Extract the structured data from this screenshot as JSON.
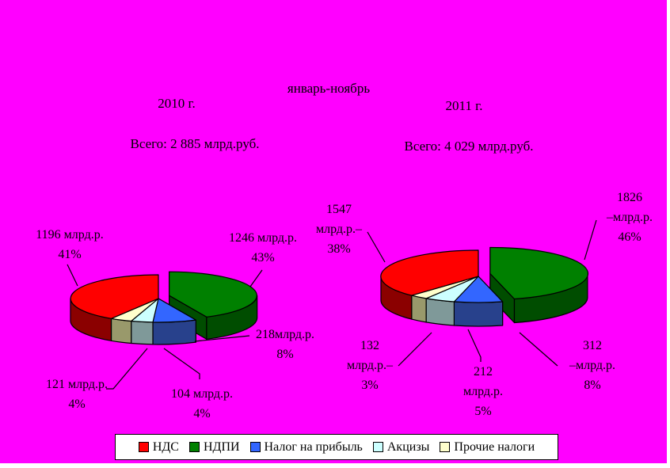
{
  "window": {
    "background": "#FF00FF",
    "border_color": "#FFFFFF"
  },
  "title": "январь-ноябрь",
  "charts": [
    {
      "year": "2010 г.",
      "total": "Всего: 2 885 млрд.руб.",
      "callouts": {
        "nds": {
          "lines": [
            "1196 млрд.р.",
            "41%"
          ]
        },
        "ndpi": {
          "lines": [
            "1246 млрд.р.",
            "43%"
          ]
        },
        "profit": {
          "lines": [
            "218млрд.р.",
            "8%"
          ]
        },
        "excise": {
          "lines": [
            "104 млрд.р.",
            "4%"
          ]
        },
        "other": {
          "lines": [
            "121 млрд.р.",
            "4%"
          ]
        }
      }
    },
    {
      "year": "2011 г.",
      "total": "Всего: 4 029 млрд.руб.",
      "callouts": {
        "nds": {
          "lines": [
            "1547",
            "млрд.р.–",
            "38%"
          ]
        },
        "ndpi": {
          "lines": [
            "1826",
            "–млрд.р.",
            "46%"
          ]
        },
        "profit": {
          "lines": [
            "312",
            "–млрд.р.",
            "8%"
          ]
        },
        "excise": {
          "lines": [
            "212",
            "млрд.р.",
            "5%"
          ]
        },
        "other": {
          "lines": [
            "132",
            "млрд.р.–",
            "3%"
          ]
        }
      }
    }
  ],
  "legend": {
    "items": [
      {
        "label": "НДС",
        "color": "#FF0000"
      },
      {
        "label": "НДПИ",
        "color": "#008000"
      },
      {
        "label": "Налог на прибыль",
        "color": "#3366FF"
      },
      {
        "label": "Акцизы",
        "color": "#CCFFFF"
      },
      {
        "label": "Прочие налоги",
        "color": "#FFFFCC"
      }
    ],
    "position": "bottom"
  },
  "chart_data": [
    {
      "type": "pie",
      "style": "3d-exploded",
      "title": "2010 г.",
      "subtitle": "Всего: 2 885 млрд.руб.",
      "period": "январь-ноябрь",
      "unit": "млрд.р.",
      "total": 2885,
      "categories": [
        "НДС",
        "НДПИ",
        "Налог на прибыль",
        "Акцизы",
        "Прочие налоги"
      ],
      "values": [
        1196,
        1246,
        218,
        104,
        121
      ],
      "percents": [
        41,
        43,
        8,
        4,
        4
      ],
      "colors": [
        "#FF0000",
        "#008000",
        "#3366FF",
        "#CCFFFF",
        "#FFFFCC"
      ],
      "side_colors": [
        "#8B0000",
        "#004D00",
        "#28418C",
        "#7F9999",
        "#99996B"
      ],
      "exploded_category": "НДПИ",
      "legend_position": "bottom"
    },
    {
      "type": "pie",
      "style": "3d-exploded",
      "title": "2011 г.",
      "subtitle": "Всего: 4 029 млрд.руб.",
      "period": "январь-ноябрь",
      "unit": "млрд.р.",
      "total": 4029,
      "categories": [
        "НДС",
        "НДПИ",
        "Налог на прибыль",
        "Акцизы",
        "Прочие налоги"
      ],
      "values": [
        1547,
        1826,
        312,
        212,
        132
      ],
      "percents": [
        38,
        46,
        8,
        5,
        3
      ],
      "colors": [
        "#FF0000",
        "#008000",
        "#3366FF",
        "#CCFFFF",
        "#FFFFCC"
      ],
      "side_colors": [
        "#8B0000",
        "#004D00",
        "#28418C",
        "#7F9999",
        "#99996B"
      ],
      "exploded_category": "НДПИ",
      "legend_position": "bottom"
    }
  ]
}
